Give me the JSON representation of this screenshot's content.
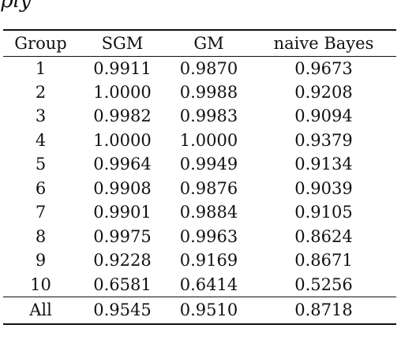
{
  "page": {
    "top_fragment": "ply"
  },
  "table": {
    "headers": [
      "Group",
      "SGM",
      "GM",
      "naive Bayes"
    ],
    "rows": [
      [
        "1",
        "0.9911",
        "0.9870",
        "0.9673"
      ],
      [
        "2",
        "1.0000",
        "0.9988",
        "0.9208"
      ],
      [
        "3",
        "0.9982",
        "0.9983",
        "0.9094"
      ],
      [
        "4",
        "1.0000",
        "1.0000",
        "0.9379"
      ],
      [
        "5",
        "0.9964",
        "0.9949",
        "0.9134"
      ],
      [
        "6",
        "0.9908",
        "0.9876",
        "0.9039"
      ],
      [
        "7",
        "0.9901",
        "0.9884",
        "0.9105"
      ],
      [
        "8",
        "0.9975",
        "0.9963",
        "0.8624"
      ],
      [
        "9",
        "0.9228",
        "0.9169",
        "0.8671"
      ],
      [
        "10",
        "0.6581",
        "0.6414",
        "0.5256"
      ]
    ],
    "total_row": [
      "All",
      "0.9545",
      "0.9510",
      "0.8718"
    ]
  }
}
